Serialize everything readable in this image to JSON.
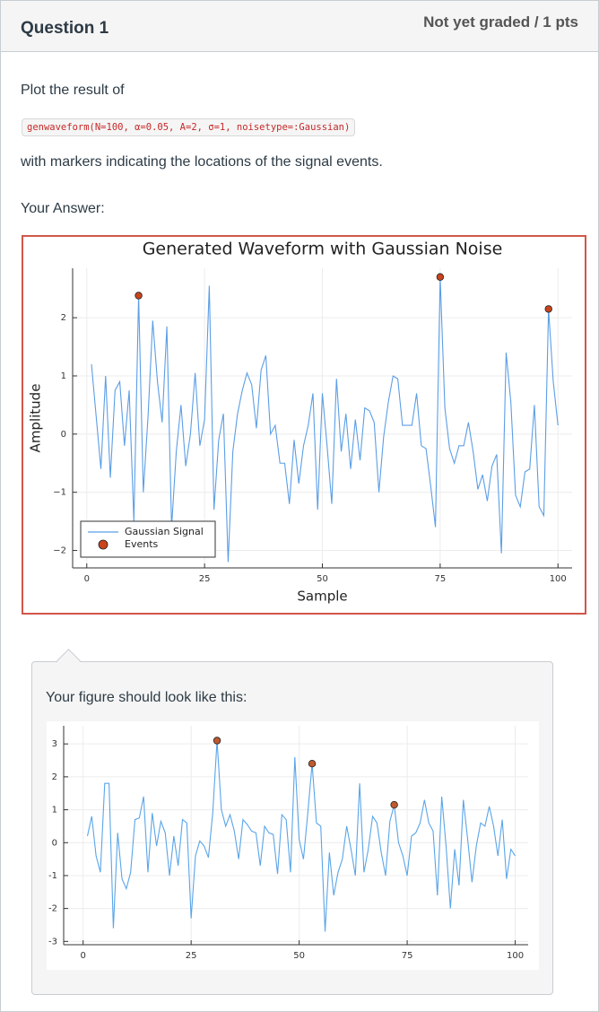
{
  "header": {
    "title": "Question 1",
    "status": "Not yet graded / 1 pts"
  },
  "question": {
    "prompt": "Plot the result of",
    "code": "genwaveform(N=100, α=0.05, A=2, σ=1, noisetype=:Gaussian)",
    "instruction": "with markers indicating the locations of the signal events."
  },
  "answer": {
    "label": "Your Answer:",
    "chart_data": {
      "type": "line",
      "title": "Generated Waveform with Gaussian Noise",
      "x_label": "Sample",
      "y_label": "Amplitude",
      "xlim": [
        -3,
        103
      ],
      "ylim": [
        -2.3,
        2.85
      ],
      "xticks": [
        0,
        25,
        50,
        75,
        100
      ],
      "yticks": [
        {
          "value": -2,
          "label": "−2"
        },
        {
          "value": -1,
          "label": "−1"
        },
        0,
        1,
        2
      ],
      "grid": true,
      "legend": "bottom left",
      "series": [
        {
          "name": "Gaussian Signal",
          "color": "#5b9ee6",
          "x": [
            1,
            2,
            3,
            4,
            5,
            6,
            7,
            8,
            9,
            10,
            11,
            12,
            13,
            14,
            15,
            16,
            17,
            18,
            19,
            20,
            21,
            22,
            23,
            24,
            25,
            26,
            27,
            28,
            29,
            30,
            31,
            32,
            33,
            34,
            35,
            36,
            37,
            38,
            39,
            40,
            41,
            42,
            43,
            44,
            45,
            46,
            47,
            48,
            49,
            50,
            51,
            52,
            53,
            54,
            55,
            56,
            57,
            58,
            59,
            60,
            61,
            62,
            63,
            64,
            65,
            66,
            67,
            68,
            69,
            70,
            71,
            72,
            73,
            74,
            75,
            76,
            77,
            78,
            79,
            80,
            81,
            82,
            83,
            84,
            85,
            86,
            87,
            88,
            89,
            90,
            91,
            92,
            93,
            94,
            95,
            96,
            97,
            98,
            99,
            100
          ],
          "values": [
            1.2,
            0.3,
            -0.6,
            1.0,
            -0.75,
            0.75,
            0.9,
            -0.2,
            0.75,
            -1.5,
            2.38,
            -1.0,
            0.3,
            1.95,
            0.9,
            0.2,
            1.85,
            -1.6,
            -0.3,
            0.5,
            -0.55,
            0.0,
            1.05,
            -0.2,
            0.25,
            2.55,
            -1.3,
            -0.1,
            0.35,
            -2.2,
            -0.3,
            0.35,
            0.75,
            1.05,
            0.85,
            0.1,
            1.1,
            1.35,
            0.0,
            0.15,
            -0.5,
            -0.5,
            -1.2,
            -0.1,
            -0.85,
            -0.2,
            0.15,
            0.7,
            -1.3,
            0.7,
            -0.2,
            -1.2,
            0.95,
            -0.3,
            0.35,
            -0.6,
            0.25,
            -0.45,
            0.45,
            0.4,
            0.2,
            -1.0,
            -0.05,
            0.55,
            1.0,
            0.95,
            0.15,
            0.15,
            0.15,
            0.7,
            -0.2,
            -0.25,
            -0.9,
            -1.6,
            2.7,
            0.45,
            -0.25,
            -0.5,
            -0.2,
            -0.2,
            0.2,
            -0.3,
            -0.95,
            -0.7,
            -1.15,
            -0.55,
            -0.35,
            -2.05,
            1.4,
            0.55,
            -1.05,
            -1.25,
            -0.65,
            -0.6,
            0.5,
            -1.25,
            -1.4,
            2.15,
            0.9,
            0.15
          ]
        },
        {
          "name": "Events",
          "color": "#c9441c",
          "mode": "markers",
          "x": [
            11,
            75,
            98
          ],
          "values": [
            2.38,
            2.7,
            2.15
          ]
        }
      ]
    }
  },
  "feedback": {
    "text": "Your figure should look like this:",
    "chart_data": {
      "type": "line",
      "xlim": [
        -4.5,
        103
      ],
      "ylim": [
        -3.1,
        3.55
      ],
      "xticks": [
        0,
        25,
        50,
        75,
        100
      ],
      "yticks": [
        -3,
        -2,
        -1,
        0,
        1,
        2,
        3
      ],
      "grid": true,
      "series": [
        {
          "color": "#5aa5e8",
          "x": [
            1,
            2,
            3,
            4,
            5,
            6,
            7,
            8,
            9,
            10,
            11,
            12,
            13,
            14,
            15,
            16,
            17,
            18,
            19,
            20,
            21,
            22,
            23,
            24,
            25,
            26,
            27,
            28,
            29,
            30,
            31,
            32,
            33,
            34,
            35,
            36,
            37,
            38,
            39,
            40,
            41,
            42,
            43,
            44,
            45,
            46,
            47,
            48,
            49,
            50,
            51,
            52,
            53,
            54,
            55,
            56,
            57,
            58,
            59,
            60,
            61,
            62,
            63,
            64,
            65,
            66,
            67,
            68,
            69,
            70,
            71,
            72,
            73,
            74,
            75,
            76,
            77,
            78,
            79,
            80,
            81,
            82,
            83,
            84,
            85,
            86,
            87,
            88,
            89,
            90,
            91,
            92,
            93,
            94,
            95,
            96,
            97,
            98,
            99,
            100
          ],
          "values": [
            0.2,
            0.8,
            -0.4,
            -0.9,
            1.8,
            1.8,
            -2.6,
            0.3,
            -1.1,
            -1.4,
            -0.9,
            0.7,
            0.75,
            1.4,
            -0.9,
            0.9,
            -0.1,
            0.65,
            0.3,
            -1.0,
            0.2,
            -0.7,
            0.7,
            0.6,
            -2.3,
            -0.4,
            0.05,
            -0.1,
            -0.45,
            0.9,
            3.1,
            1.0,
            0.5,
            0.85,
            0.35,
            -0.5,
            0.7,
            0.55,
            0.35,
            0.3,
            -0.7,
            0.5,
            0.3,
            0.25,
            -0.95,
            0.85,
            0.7,
            -0.9,
            2.6,
            0.1,
            -0.5,
            0.9,
            2.4,
            0.6,
            0.5,
            -2.7,
            -0.3,
            -1.6,
            -0.9,
            -0.5,
            0.5,
            -0.2,
            -1.0,
            1.8,
            -0.9,
            -0.2,
            0.8,
            0.6,
            -0.3,
            -1.0,
            0.65,
            1.15,
            0.0,
            -0.4,
            -1.0,
            0.2,
            0.3,
            0.6,
            1.3,
            0.6,
            0.35,
            -1.6,
            1.4,
            -0.1,
            -2.0,
            -0.2,
            -1.3,
            1.3,
            0.1,
            -1.2,
            -0.1,
            0.6,
            0.5,
            1.1,
            0.5,
            -0.4,
            0.7,
            -1.1,
            -0.2,
            -0.4
          ]
        },
        {
          "color": "#c0592e",
          "mode": "markers",
          "x": [
            31,
            53,
            72
          ],
          "values": [
            3.1,
            2.4,
            1.15
          ]
        }
      ]
    }
  }
}
